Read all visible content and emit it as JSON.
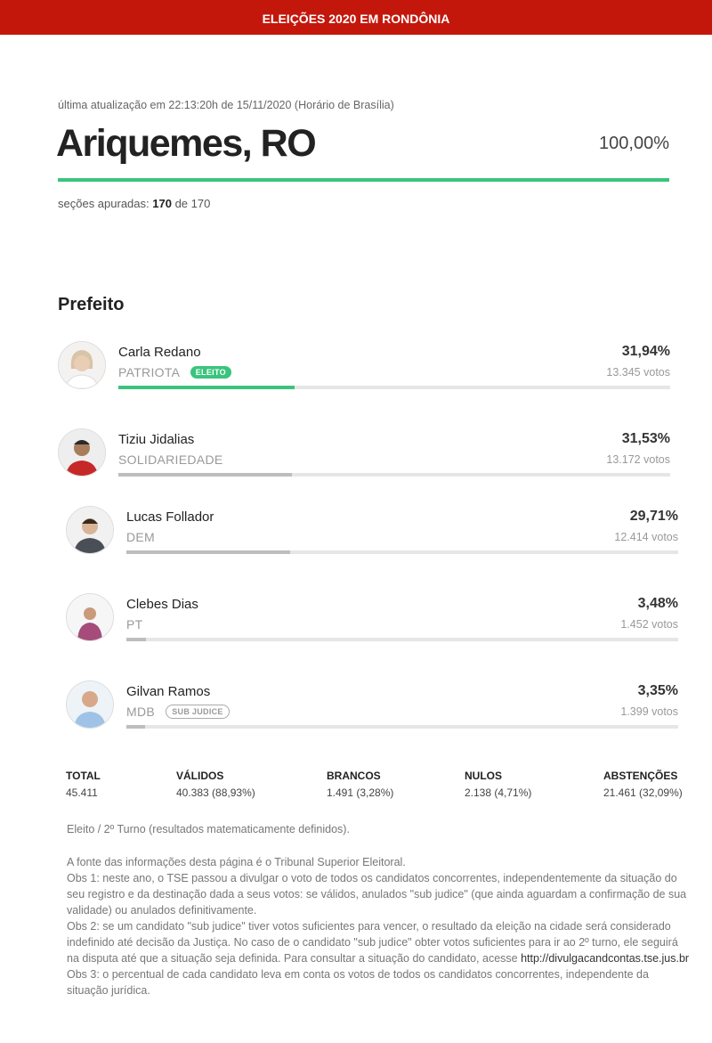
{
  "header": {
    "title": "ELEIÇÕES 2020 EM RONDÔNIA"
  },
  "update": {
    "text": "última atualização em 22:13:20h de 15/11/2020 (Horário de Brasília)"
  },
  "city": {
    "name": "Ariquemes, RO",
    "percent": "100,00%",
    "progress": 1.0
  },
  "sections": {
    "label": "seções apuradas:",
    "counted": "170",
    "of": "de 170"
  },
  "office": {
    "title": "Prefeito"
  },
  "candidates": [
    {
      "name": "Carla Redano",
      "party": "PATRIOTA",
      "badge": "ELEITO",
      "percent": "31,94%",
      "votes": "13.345 votos",
      "share": 0.3194
    },
    {
      "name": "Tiziu Jidalias",
      "party": "SOLIDARIEDADE",
      "badge": "",
      "percent": "31,53%",
      "votes": "13.172 votos",
      "share": 0.3153
    },
    {
      "name": "Lucas Follador",
      "party": "DEM",
      "badge": "",
      "percent": "29,71%",
      "votes": "12.414 votos",
      "share": 0.2971
    },
    {
      "name": "Clebes Dias",
      "party": "PT",
      "badge": "",
      "percent": "3,48%",
      "votes": "1.452 votos",
      "share": 0.0348
    },
    {
      "name": "Gilvan Ramos",
      "party": "MDB",
      "badge": "SUB JUDICE",
      "percent": "3,35%",
      "votes": "1.399 votos",
      "share": 0.0335
    }
  ],
  "totals": {
    "total": {
      "label": "TOTAL",
      "value": "45.411"
    },
    "validos": {
      "label": "VÁLIDOS",
      "value": "40.383 (88,93%)"
    },
    "brancos": {
      "label": "BRANCOS",
      "value": "1.491 (3,28%)"
    },
    "nulos": {
      "label": "NULOS",
      "value": "2.138 (4,71%)"
    },
    "abstencoes": {
      "label": "ABSTENÇÕES",
      "value": "21.461 (32,09%)"
    }
  },
  "footnote": "Eleito / 2º Turno (resultados matematicamente definidos).",
  "notes": {
    "source": "A fonte das informações desta página é o Tribunal Superior Eleitoral.",
    "obs1": "Obs 1: neste ano, o TSE passou a divulgar o voto de todos os candidatos concorrentes, independentemente da situação do seu registro e da destinação dada a seus votos: se válidos, anulados \"sub judice\" (que ainda aguardam a confirmação de sua validade) ou anulados definitivamente.",
    "obs2": "Obs 2: se um candidato \"sub judice\" tiver votos suficientes para vencer, o resultado da eleição na cidade será considerado indefinido até decisão da Justiça. No caso de o candidato \"sub judice\" obter votos suficientes para ir ao 2º turno, ele seguirá na disputa até que a situação seja definida. Para consultar a situação do candidato, acesse",
    "link": "http://divulgacandcontas.tse.jus.br",
    "obs3": "Obs 3: o percentual de cada candidato leva em conta os votos de todos os candidatos concorrentes, independente da situação jurídica."
  },
  "colors": {
    "header": "#c4170c",
    "accent": "#3ac47d",
    "bar_loser": "#bdbdbd"
  }
}
